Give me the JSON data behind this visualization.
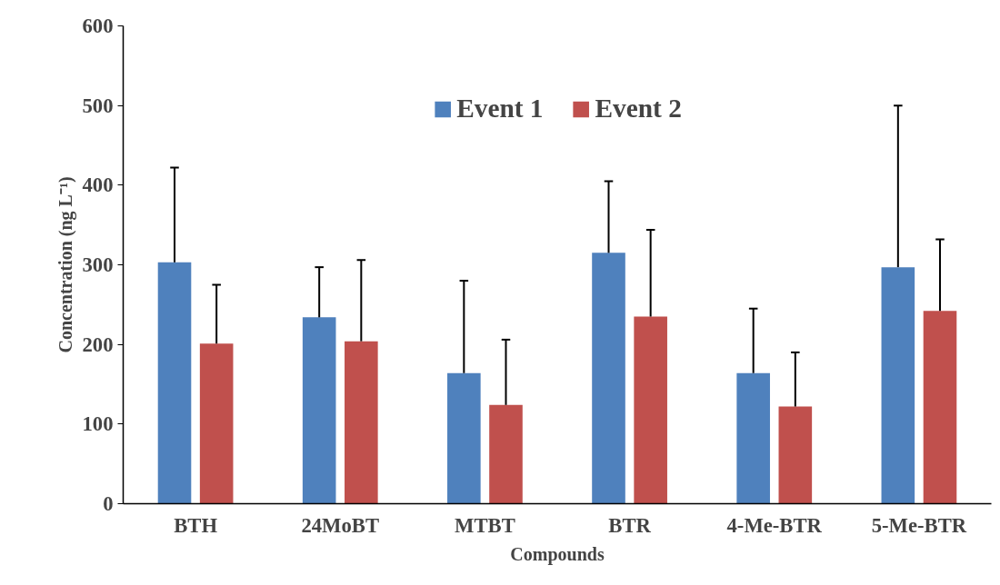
{
  "chart_data": {
    "type": "bar",
    "xlabel": "Compounds",
    "ylabel": "Concentration (ng L⁻¹)",
    "categories": [
      "BTH",
      "24MoBT",
      "MTBT",
      "BTR",
      "4-Me-BTR",
      "5-Me-BTR"
    ],
    "series": [
      {
        "name": "Event 1",
        "color": "#4f81bd",
        "values": [
          303,
          234,
          164,
          315,
          164,
          297
        ],
        "errors": [
          [
            303,
            422
          ],
          [
            234,
            297
          ],
          [
            164,
            280
          ],
          [
            315,
            405
          ],
          [
            164,
            245
          ],
          [
            297,
            500
          ]
        ]
      },
      {
        "name": "Event 2",
        "color": "#c0504d",
        "values": [
          201,
          204,
          124,
          235,
          122,
          242
        ],
        "errors": [
          [
            201,
            275
          ],
          [
            204,
            306
          ],
          [
            124,
            206
          ],
          [
            235,
            344
          ],
          [
            122,
            190
          ],
          [
            242,
            332
          ]
        ]
      }
    ],
    "ylim": [
      0,
      600
    ],
    "yticks": [
      0,
      100,
      200,
      300,
      400,
      500,
      600
    ],
    "grid": false,
    "legend": "top"
  }
}
